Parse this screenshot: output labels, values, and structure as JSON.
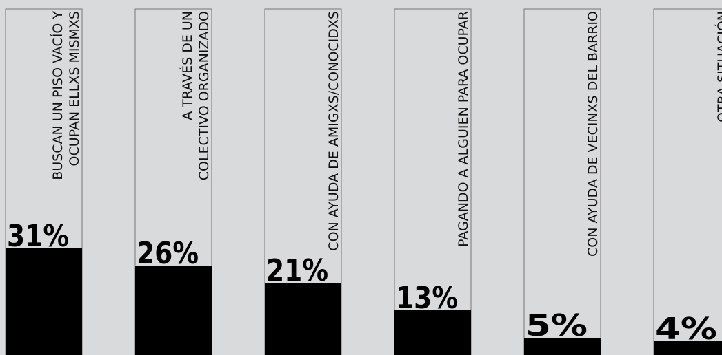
{
  "chart_data": {
    "type": "bar",
    "orientation": "vertical",
    "ylim": [
      0,
      100
    ],
    "grid": false,
    "legend": "none",
    "colors": {
      "background": "#d9dadb",
      "bar": "#000000",
      "outline": "#777777",
      "text": "#111111"
    },
    "categories": [
      [
        "BUSCAN UN PISO VACÍO Y",
        "OCUPAN ELLXS MISMXS"
      ],
      [
        "A TRAVÉS DE UN",
        "COLECTIVO ORGANIZADO"
      ],
      [
        "CON AYUDA DE AMIGXS/CONOCIDXS"
      ],
      [
        "PAGANDO A ALGUIEN PARA OCUPAR"
      ],
      [
        "CON AYUDA DE VECINXS DEL BARRIO"
      ],
      [
        "OTRA SITUACIÓN"
      ]
    ],
    "values": [
      31,
      26,
      21,
      13,
      5,
      4
    ],
    "value_labels": [
      "31%",
      "26%",
      "21%",
      "13%",
      "5%",
      "4%"
    ]
  }
}
